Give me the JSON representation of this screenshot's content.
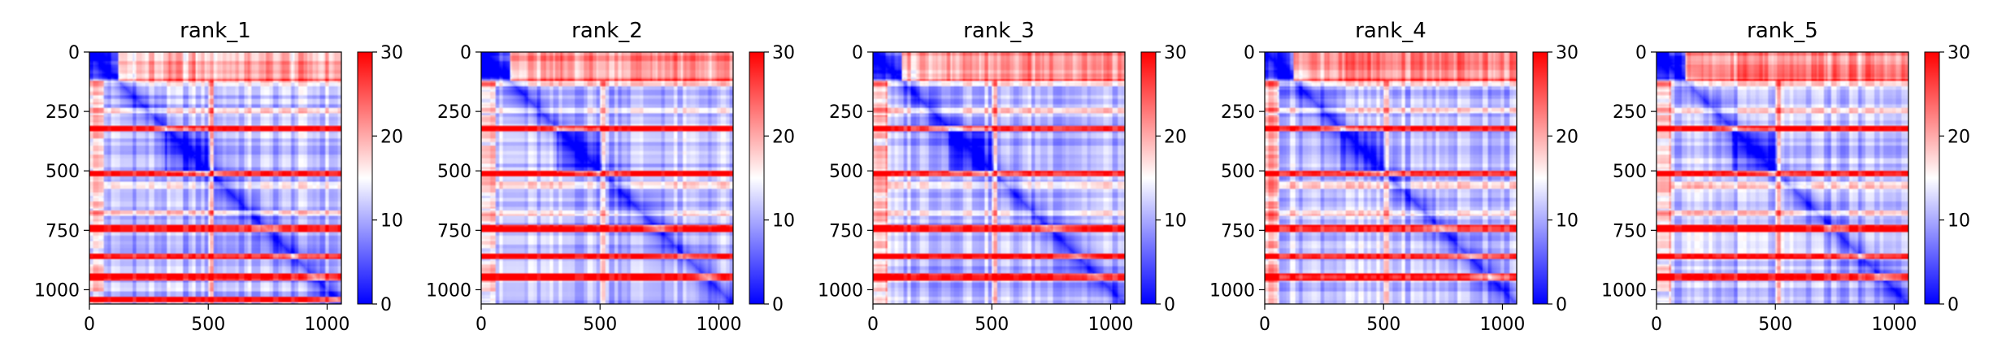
{
  "chart_data": [
    {
      "type": "heatmap",
      "title": "rank_1",
      "xticks": [
        "0",
        "500",
        "1000"
      ],
      "yticks": [
        "0",
        "250",
        "500",
        "750",
        "1000"
      ],
      "xlim": [
        0,
        1060
      ],
      "ylim": [
        1060,
        0
      ],
      "colorbar": {
        "range": [
          0,
          30
        ],
        "ticks": [
          "0",
          "10",
          "20",
          "30"
        ]
      },
      "colormap": "bwr",
      "high_bands": [
        322,
        510,
        742,
        860,
        946,
        1040
      ],
      "low_bands": [
        128,
        245,
        560,
        680
      ],
      "diag_blocks": [
        [
          0,
          120
        ],
        [
          320,
          510
        ]
      ],
      "matrix_size": 1060
    },
    {
      "type": "heatmap",
      "title": "rank_2",
      "xticks": [
        "0",
        "500",
        "1000"
      ],
      "yticks": [
        "0",
        "250",
        "500",
        "750",
        "1000"
      ],
      "xlim": [
        0,
        1060
      ],
      "ylim": [
        1060,
        0
      ],
      "colorbar": {
        "range": [
          0,
          30
        ],
        "ticks": [
          "0",
          "10",
          "20",
          "30"
        ]
      },
      "colormap": "bwr",
      "high_bands": [
        322,
        510,
        742,
        860,
        946
      ],
      "low_bands": [
        128,
        245,
        560,
        680
      ],
      "diag_blocks": [
        [
          0,
          120
        ],
        [
          320,
          510
        ]
      ],
      "matrix_size": 1060
    },
    {
      "type": "heatmap",
      "title": "rank_3",
      "xticks": [
        "0",
        "500",
        "1000"
      ],
      "yticks": [
        "0",
        "250",
        "500",
        "750",
        "1000"
      ],
      "xlim": [
        0,
        1060
      ],
      "ylim": [
        1060,
        0
      ],
      "colorbar": {
        "range": [
          0,
          30
        ],
        "ticks": [
          "0",
          "10",
          "20",
          "30"
        ]
      },
      "colormap": "bwr",
      "high_bands": [
        322,
        510,
        742,
        860,
        946
      ],
      "low_bands": [
        128,
        245,
        560,
        680
      ],
      "diag_blocks": [
        [
          0,
          120
        ],
        [
          320,
          510
        ]
      ],
      "matrix_size": 1060
    },
    {
      "type": "heatmap",
      "title": "rank_4",
      "xticks": [
        "0",
        "500",
        "1000"
      ],
      "yticks": [
        "0",
        "250",
        "500",
        "750",
        "1000"
      ],
      "xlim": [
        0,
        1060
      ],
      "ylim": [
        1060,
        0
      ],
      "colorbar": {
        "range": [
          0,
          30
        ],
        "ticks": [
          "0",
          "10",
          "20",
          "30"
        ]
      },
      "colormap": "bwr",
      "high_bands": [
        322,
        510,
        742,
        860,
        946
      ],
      "low_bands": [
        128,
        245,
        560,
        680
      ],
      "diag_blocks": [
        [
          0,
          120
        ],
        [
          320,
          510
        ]
      ],
      "matrix_size": 1060
    },
    {
      "type": "heatmap",
      "title": "rank_5",
      "xticks": [
        "0",
        "500",
        "1000"
      ],
      "yticks": [
        "0",
        "250",
        "500",
        "750",
        "1000"
      ],
      "xlim": [
        0,
        1060
      ],
      "ylim": [
        1060,
        0
      ],
      "colorbar": {
        "range": [
          0,
          30
        ],
        "ticks": [
          "0",
          "10",
          "20",
          "30"
        ]
      },
      "colormap": "bwr",
      "high_bands": [
        322,
        510,
        742,
        860,
        946
      ],
      "low_bands": [
        128,
        245,
        560,
        680
      ],
      "diag_blocks": [
        [
          0,
          120
        ],
        [
          320,
          510
        ]
      ],
      "matrix_size": 1060
    }
  ]
}
